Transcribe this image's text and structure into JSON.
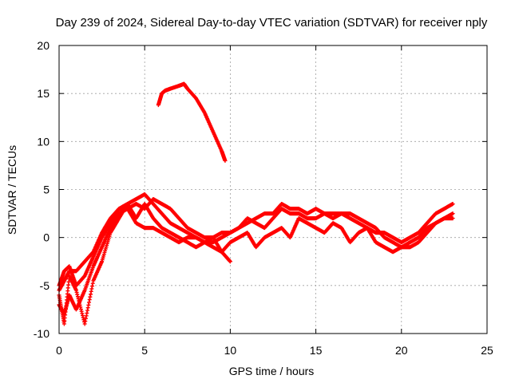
{
  "chart_data": {
    "type": "scatter",
    "title": "Day 239 of 2024, Sidereal Day-to-day VTEC variation (SDTVAR) for receiver nply",
    "xlabel": "GPS time / hours",
    "ylabel": "SDTVAR / TECUs",
    "xlim": [
      0,
      25
    ],
    "ylim": [
      -10,
      20
    ],
    "xticks": [
      0,
      5,
      10,
      15,
      20,
      25
    ],
    "yticks": [
      -10,
      -5,
      0,
      5,
      10,
      15,
      20
    ],
    "grid": true,
    "marker": "+",
    "color": "#ff0000",
    "series": [
      {
        "name": "trace-1",
        "x": [
          0,
          0.3,
          0.6,
          1.0,
          1.5,
          2.0,
          2.5,
          3.0,
          3.5,
          4.0,
          4.5,
          5.0,
          5.5,
          6.0,
          6.5,
          7.0,
          7.5,
          8.0,
          8.5,
          9.0,
          9.5,
          10.0,
          10.5,
          11.0,
          11.5,
          12.0,
          12.5,
          13.0,
          13.5,
          14.0,
          14.5,
          15.0,
          15.5,
          16.0,
          16.5,
          17.0,
          17.5,
          18.0,
          18.5,
          19.0,
          19.5,
          20.0,
          20.5,
          21.0,
          21.5,
          22.0,
          22.5,
          23.0
        ],
        "y": [
          -5.5,
          -4.5,
          -3.5,
          -3.5,
          -2.5,
          -1.5,
          0.5,
          2.0,
          3.0,
          3.5,
          4.0,
          4.5,
          3.5,
          2.5,
          1.5,
          1.0,
          0.5,
          0.0,
          -0.5,
          -0.5,
          0.0,
          0.5,
          1.0,
          1.5,
          2.0,
          2.5,
          2.5,
          3.5,
          3.0,
          3.0,
          2.5,
          3.0,
          2.5,
          2.0,
          2.5,
          2.0,
          1.5,
          1.0,
          0.5,
          0.5,
          0.0,
          -0.5,
          0.0,
          0.5,
          1.5,
          2.5,
          3.0,
          3.5
        ]
      },
      {
        "name": "trace-2",
        "x": [
          0,
          0.3,
          0.6,
          1.0,
          1.5,
          2.0,
          2.5,
          3.0,
          3.5,
          4.0,
          4.5,
          5.0,
          5.5,
          6.0,
          6.5,
          7.0,
          7.5,
          8.0,
          8.5,
          9.0,
          9.5,
          10.0,
          10.5,
          11.0,
          11.5,
          12.0,
          12.5,
          13.0,
          13.5,
          14.0,
          14.5,
          15.0,
          15.5,
          16.0,
          16.5,
          17.0,
          17.5,
          18.0,
          18.5,
          19.0,
          19.5,
          20.0,
          20.5,
          21.0,
          21.5,
          22.0,
          22.5,
          23.0
        ],
        "y": [
          -7.0,
          -8.0,
          -6.0,
          -7.5,
          -5.5,
          -3.0,
          -1.0,
          1.0,
          2.5,
          3.0,
          3.5,
          3.0,
          4.0,
          3.5,
          3.0,
          2.0,
          1.0,
          0.5,
          0.0,
          0.0,
          0.5,
          0.5,
          1.0,
          2.0,
          1.5,
          1.0,
          2.0,
          3.0,
          2.5,
          2.5,
          2.0,
          2.0,
          2.5,
          2.5,
          2.5,
          2.5,
          2.0,
          1.5,
          1.0,
          0.0,
          -0.5,
          -1.0,
          -1.0,
          -0.5,
          0.5,
          1.5,
          2.0,
          2.5
        ]
      },
      {
        "name": "trace-3",
        "x": [
          0,
          0.3,
          0.6,
          1.0,
          1.5,
          2.0,
          2.5,
          3.0,
          3.5,
          4.0,
          4.5,
          5.0,
          5.5,
          6.0,
          6.5,
          7.0,
          7.5,
          8.0,
          8.5,
          9.0,
          9.5,
          10.0,
          10.5,
          11.0,
          11.5,
          12.0,
          12.5,
          13.0,
          13.5,
          14.0,
          14.5,
          15.0,
          15.5,
          16.0,
          16.5,
          17.0,
          17.5,
          18.0,
          18.5,
          19.0,
          19.5,
          20.0,
          20.5,
          21.0,
          21.5,
          22.0,
          22.5,
          23.0
        ],
        "y": [
          -6.0,
          -9.0,
          -4.0,
          -5.5,
          -9.0,
          -4.5,
          -2.5,
          0.5,
          2.0,
          3.5,
          2.0,
          3.5,
          2.0,
          1.0,
          0.5,
          0.0,
          -0.5,
          -1.0,
          -0.5,
          0.0,
          -1.5,
          -0.5,
          0.0,
          0.5,
          -1.0,
          0.0,
          0.5,
          1.0,
          0.0,
          2.0,
          1.5,
          1.0,
          0.5,
          1.5,
          1.0,
          -0.5,
          0.5,
          1.0,
          -0.5,
          -1.0,
          -1.5,
          -1.0,
          -0.5,
          0.0,
          1.0,
          1.5,
          2.0,
          2.0
        ]
      },
      {
        "name": "trace-4",
        "x": [
          0,
          0.3,
          0.6,
          1.0,
          1.5,
          2.0,
          2.5,
          3.0,
          3.5,
          4.0,
          4.5,
          5.0,
          5.5,
          6.0,
          6.5,
          7.0,
          7.5,
          8.0,
          8.5,
          9.0,
          9.5,
          10.0
        ],
        "y": [
          -5.0,
          -3.5,
          -3.0,
          -5.0,
          -4.0,
          -2.0,
          0.0,
          1.5,
          3.0,
          3.0,
          1.5,
          1.0,
          1.0,
          0.5,
          0.0,
          -0.5,
          0.0,
          0.0,
          -0.5,
          -1.0,
          -1.5,
          -2.5
        ]
      },
      {
        "name": "trace-5",
        "x": [
          5.8,
          6.0,
          6.2,
          6.5,
          7.0,
          7.3,
          7.5,
          8.0,
          8.5,
          9.0,
          9.5,
          9.7
        ],
        "y": [
          13.8,
          15.0,
          15.3,
          15.5,
          15.8,
          16.0,
          15.5,
          14.5,
          13.0,
          11.0,
          9.0,
          8.0
        ]
      }
    ]
  }
}
